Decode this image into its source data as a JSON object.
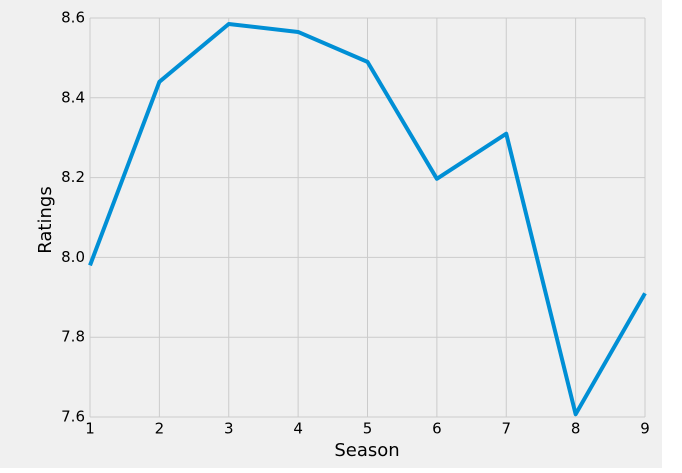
{
  "chart_data": {
    "type": "line",
    "x_label": "Season",
    "y_label": "Ratings",
    "x": [
      1,
      2,
      3,
      4,
      5,
      6,
      7,
      8,
      9
    ],
    "series": [
      {
        "color": "#008fd5",
        "values": [
          7.98,
          8.44,
          8.585,
          8.565,
          8.49,
          8.197,
          8.31,
          7.607,
          7.91
        ]
      }
    ],
    "xlim": [
      1,
      9
    ],
    "xticks": [
      1,
      2,
      3,
      4,
      5,
      6,
      7,
      8,
      9
    ],
    "ylim": [
      7.6,
      8.6
    ],
    "yticks": [
      7.6,
      7.8,
      {
        "value": 8,
        "label": "8.0"
      },
      8.2,
      8.4,
      8.6
    ],
    "grid": true
  }
}
